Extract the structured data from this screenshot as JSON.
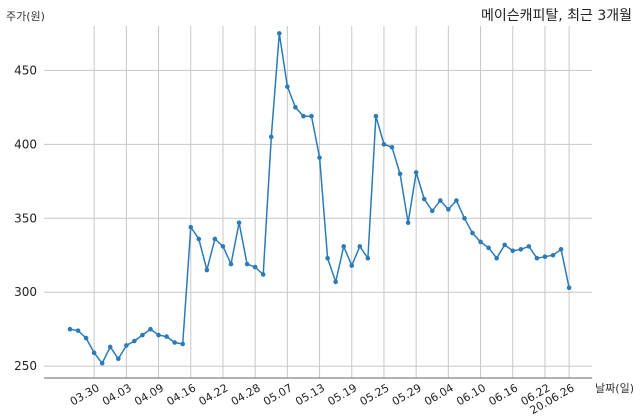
{
  "chart_data": {
    "type": "line",
    "title": "메이슨캐피탈, 최근 3개월",
    "ylabel": "주가(원)",
    "xlabel": "날짜(일)",
    "ylim": [
      242,
      480
    ],
    "yticks": [
      250,
      300,
      350,
      400,
      450
    ],
    "grid": true,
    "color": "#2b7bb9",
    "xticks": [
      {
        "index": 3,
        "label": "03.30"
      },
      {
        "index": 7,
        "label": "04.03"
      },
      {
        "index": 11,
        "label": "04.09"
      },
      {
        "index": 15,
        "label": "04.16"
      },
      {
        "index": 19,
        "label": "04.22"
      },
      {
        "index": 23,
        "label": "04.28"
      },
      {
        "index": 27,
        "label": "05.07"
      },
      {
        "index": 31,
        "label": "05.13"
      },
      {
        "index": 35,
        "label": "05.19"
      },
      {
        "index": 39,
        "label": "05.25"
      },
      {
        "index": 43,
        "label": "05.29"
      },
      {
        "index": 47,
        "label": "06.04"
      },
      {
        "index": 51,
        "label": "06.10"
      },
      {
        "index": 55,
        "label": "06.16"
      },
      {
        "index": 59,
        "label": "06.22"
      },
      {
        "index": 62,
        "label": "20.06.26"
      }
    ],
    "values": [
      275,
      274,
      269,
      259,
      252,
      263,
      255,
      264,
      267,
      271,
      275,
      271,
      270,
      266,
      265,
      344,
      336,
      315,
      336,
      331,
      319,
      347,
      319,
      317,
      312,
      405,
      475,
      439,
      425,
      419,
      419,
      391,
      323,
      307,
      331,
      318,
      331,
      323,
      419,
      400,
      398,
      380,
      347,
      381,
      363,
      355,
      362,
      356,
      362,
      350,
      340,
      334,
      330,
      323,
      332,
      328,
      329,
      331,
      323,
      324,
      325,
      329,
      303
    ]
  }
}
